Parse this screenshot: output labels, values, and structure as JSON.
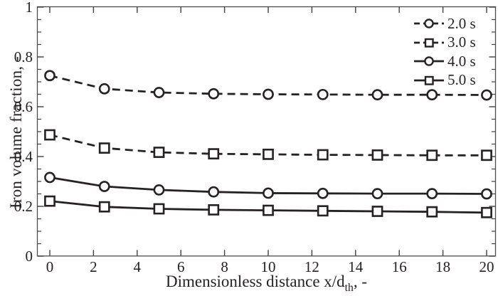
{
  "chart_data": {
    "type": "line",
    "title": "",
    "ylabel": "Iron volume fraction, -",
    "xlabel_parts": {
      "main": "Dimensionless distance x/d",
      "sub": "th",
      "tail": ", -"
    },
    "x": [
      0,
      2.5,
      5,
      7.5,
      10,
      12.5,
      15,
      17.5,
      20
    ],
    "xlim": [
      -0.6,
      20.5
    ],
    "ylim": [
      0,
      1
    ],
    "x_ticks": [
      0,
      2,
      4,
      6,
      8,
      10,
      12,
      14,
      16,
      18,
      20
    ],
    "x_tick_labels": [
      "0",
      "2",
      "4",
      "6",
      "8",
      "10",
      "12",
      "14",
      "16",
      "18",
      "20"
    ],
    "y_ticks": [
      0,
      0.2,
      0.4,
      0.6,
      0.8,
      1
    ],
    "y_tick_labels": [
      "0",
      "0.2",
      "0.4",
      "0.6",
      "0.8",
      "1"
    ],
    "y_minor_step": 0.05,
    "grid": false,
    "legend_position": "top-right",
    "colors": {
      "ink": "#262223",
      "frame": "#4c4c4c",
      "tick": "#3f3f3f",
      "marker_fill": "#ffffff"
    },
    "series": [
      {
        "name": "2.0 s",
        "marker": "circle",
        "line": "dashed",
        "values": [
          0.725,
          0.672,
          0.657,
          0.652,
          0.65,
          0.649,
          0.648,
          0.648,
          0.647
        ]
      },
      {
        "name": "3.0 s",
        "marker": "square",
        "line": "dashed",
        "values": [
          0.487,
          0.434,
          0.417,
          0.411,
          0.409,
          0.407,
          0.406,
          0.405,
          0.405
        ]
      },
      {
        "name": "4.0 s",
        "marker": "circle",
        "line": "solid",
        "values": [
          0.316,
          0.28,
          0.266,
          0.258,
          0.253,
          0.252,
          0.251,
          0.251,
          0.25
        ]
      },
      {
        "name": "5.0 s",
        "marker": "square",
        "line": "solid",
        "values": [
          0.221,
          0.198,
          0.19,
          0.186,
          0.184,
          0.182,
          0.18,
          0.178,
          0.175
        ]
      }
    ]
  }
}
